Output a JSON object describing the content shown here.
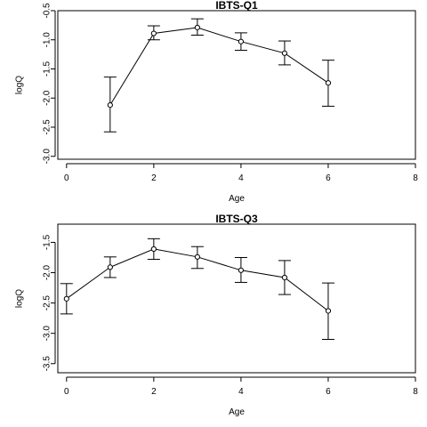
{
  "chart_data": [
    {
      "type": "line",
      "title": "IBTS-Q1",
      "xlabel": "Age",
      "ylabel": "logQ",
      "xlim": [
        -0.2,
        8
      ],
      "ylim": [
        -3.05,
        -0.5
      ],
      "xticks": [
        0,
        2,
        4,
        6,
        8
      ],
      "yticks": [
        -3.0,
        -2.5,
        -2.0,
        -1.5,
        -1.0,
        -0.5
      ],
      "xtick_labels": [
        "0",
        "2",
        "4",
        "6",
        "8"
      ],
      "ytick_labels": [
        "-3.0",
        "-2.5",
        "-2.0",
        "-1.5",
        "-1.0",
        "-0.5"
      ],
      "grid": false,
      "series": [
        {
          "x": [
            1,
            2,
            3,
            4,
            5,
            6
          ],
          "y": [
            -2.12,
            -0.89,
            -0.79,
            -1.03,
            -1.23,
            -1.74
          ],
          "lower": [
            -2.58,
            -1.0,
            -0.92,
            -1.18,
            -1.43,
            -2.14
          ],
          "upper": [
            -1.64,
            -0.76,
            -0.64,
            -0.88,
            -1.02,
            -1.35
          ]
        }
      ]
    },
    {
      "type": "line",
      "title": "IBTS-Q3",
      "xlabel": "Age",
      "ylabel": "logQ",
      "xlim": [
        -0.2,
        8
      ],
      "ylim": [
        -3.65,
        -1.2
      ],
      "xticks": [
        0,
        2,
        4,
        6,
        8
      ],
      "yticks": [
        -3.5,
        -3.0,
        -2.5,
        -2.0,
        -1.5
      ],
      "xtick_labels": [
        "0",
        "2",
        "4",
        "6",
        "8"
      ],
      "ytick_labels": [
        "-3.5",
        "-3.0",
        "-2.5",
        "-2.0",
        "-1.5"
      ],
      "grid": false,
      "series": [
        {
          "x": [
            0,
            1,
            2,
            3,
            4,
            5,
            6
          ],
          "y": [
            -2.43,
            -1.91,
            -1.61,
            -1.74,
            -1.96,
            -2.08,
            -2.63
          ],
          "lower": [
            -2.68,
            -2.08,
            -1.78,
            -1.93,
            -2.16,
            -2.36,
            -3.1
          ],
          "upper": [
            -2.18,
            -1.74,
            -1.44,
            -1.57,
            -1.75,
            -1.8,
            -2.17
          ]
        }
      ]
    }
  ]
}
